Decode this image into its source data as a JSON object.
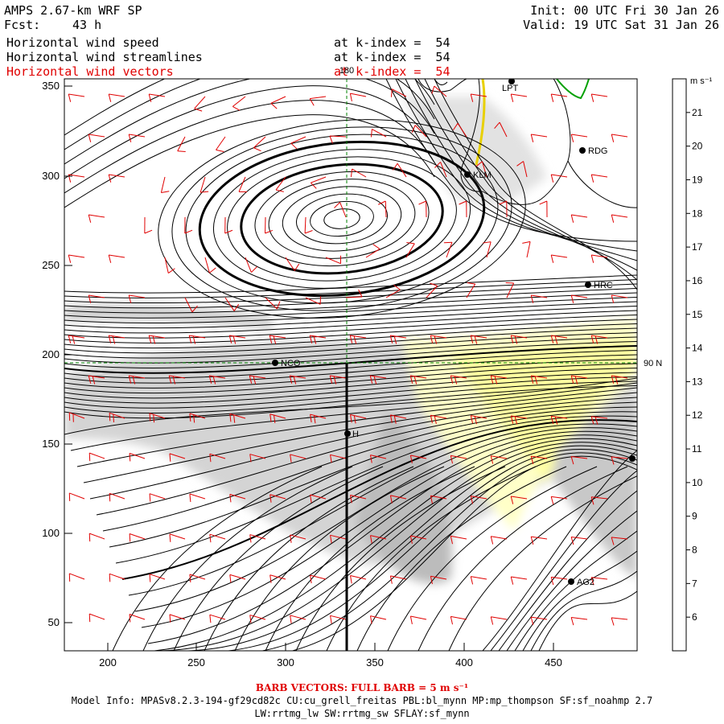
{
  "header": {
    "model": "AMPS 2.67-km WRF SP",
    "fcst_label": "Fcst:",
    "fcst_value": "43 h",
    "init": "Init: 00 UTC Fri 30 Jan 26",
    "valid": "Valid: 19 UTC Sat 31 Jan 26",
    "fields": [
      {
        "name": "Horizontal wind speed",
        "level": "at k-index =  54",
        "color": "#000000"
      },
      {
        "name": "Horizontal wind streamlines",
        "level": "at k-index =  54",
        "color": "#000000"
      },
      {
        "name": "Horizontal wind vectors",
        "level": "at k-index =  54",
        "color": "#e00000"
      }
    ]
  },
  "map": {
    "x_ticks": [
      "200",
      "250",
      "300",
      "350",
      "400",
      "450"
    ],
    "y_ticks": [
      "350",
      "300",
      "250",
      "200",
      "150",
      "100",
      "50"
    ],
    "lon_label": "180",
    "lat_label": "90 N",
    "stations": [
      {
        "id": "LPT",
        "label": "LPT"
      },
      {
        "id": "RDG",
        "label": "RDG"
      },
      {
        "id": "KLM",
        "label": "KLM"
      },
      {
        "id": "HRC",
        "label": "HRC"
      },
      {
        "id": "NCO",
        "label": "NCO"
      },
      {
        "id": "H",
        "label": "H"
      },
      {
        "id": "EDGE",
        "label": ""
      },
      {
        "id": "AG2",
        "label": "AG2"
      }
    ]
  },
  "colorbar": {
    "units": "m s⁻¹",
    "ticks": [
      "21",
      "20",
      "19",
      "18",
      "17",
      "16",
      "15",
      "14",
      "13",
      "12",
      "11",
      "10",
      "9",
      "8",
      "7",
      "6"
    ],
    "colors": [
      "#ffff00",
      "#ffff00",
      "#ffff00",
      "#ffff55",
      "#ffff88",
      "#ffffaa",
      "#ffffcc",
      "#ffffe0",
      "#f4f4f4",
      "#e8e8e8",
      "#dddddd",
      "#d0d0d0",
      "#c4c4c4",
      "#e0e0e0",
      "#eeeeee",
      "#ffffff"
    ]
  },
  "footer": {
    "barb_note": "BARB VECTORS:  FULL BARB = 5 m s⁻¹",
    "model_info": "Model Info: MPASv8.2.3-194-gf29cd82c CU:cu_grell_freitas PBL:bl_mynn MP:mp_thompson SF:sf_noahmp 2.7",
    "model_info2": "LW:rrtmg_lw SW:rrtmg_sw SFLAY:sf_mynn"
  }
}
